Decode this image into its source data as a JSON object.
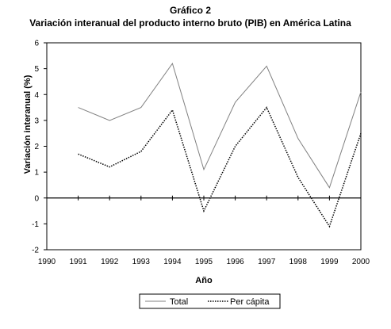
{
  "chart_data": {
    "type": "line",
    "title": "Gráfico 2",
    "subtitle": "Variación interanual del producto interno bruto (PIB) en América Latina",
    "xlabel": "Año",
    "ylabel": "Variación interanual (%)",
    "x": [
      "1990",
      "1991",
      "1992",
      "1993",
      "1994",
      "1995",
      "1996",
      "1997",
      "1998",
      "1999",
      "2000"
    ],
    "ylim": [
      -2,
      6
    ],
    "yticks": [
      "-2",
      "-1",
      "0",
      "1",
      "2",
      "3",
      "4",
      "5",
      "6"
    ],
    "grid": false,
    "legend_position": "bottom",
    "series": [
      {
        "name": "Total",
        "style": "solid",
        "color": "#808080",
        "values": [
          null,
          3.5,
          3.0,
          3.5,
          5.2,
          1.1,
          3.7,
          5.1,
          2.3,
          0.4,
          4.1
        ]
      },
      {
        "name": "Per cápita",
        "style": "dotted",
        "color": "#000000",
        "values": [
          null,
          1.7,
          1.2,
          1.8,
          3.4,
          -0.5,
          2.0,
          3.5,
          0.8,
          -1.1,
          2.5
        ]
      }
    ]
  }
}
